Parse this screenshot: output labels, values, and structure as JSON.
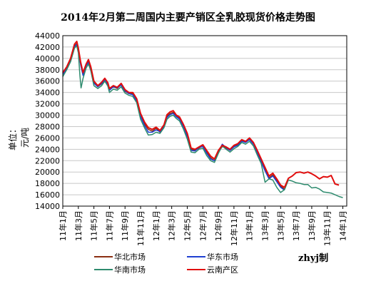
{
  "chart_data": {
    "type": "line",
    "title": "2014年2月第二周国内主要产销区全乳胶现货价格走势图",
    "ylabel": "单位：元/吨",
    "xlabel": "",
    "ylim": [
      14000,
      44000
    ],
    "yticks": [
      14000,
      16000,
      18000,
      20000,
      22000,
      24000,
      26000,
      28000,
      30000,
      32000,
      34000,
      36000,
      38000,
      40000,
      42000,
      44000
    ],
    "xtick_labels": [
      "11年1月",
      "11年3月",
      "11年5月",
      "11年7月",
      "11年9月",
      "11年11月",
      "12年1月",
      "12年3月",
      "12年5月",
      "12年7月",
      "12年9月",
      "12年11月",
      "13年1月",
      "13年3月",
      "13年5月",
      "13年7月",
      "13年9月",
      "13年11月",
      "14年1月"
    ],
    "grid": true,
    "legend_position": "bottom",
    "series": [
      {
        "name": "华北市场",
        "color": "#8B2F12",
        "points": [
          [
            0,
            37300
          ],
          [
            0.5,
            38200
          ],
          [
            1,
            39800
          ],
          [
            1.5,
            42200
          ],
          [
            1.8,
            42600
          ],
          [
            2,
            41500
          ],
          [
            2.3,
            39000
          ],
          [
            2.6,
            37200
          ],
          [
            3,
            38800
          ],
          [
            3.3,
            39500
          ],
          [
            3.6,
            38200
          ],
          [
            4,
            35800
          ],
          [
            4.5,
            35000
          ],
          [
            5,
            35500
          ],
          [
            5.4,
            36200
          ],
          [
            5.8,
            35500
          ],
          [
            6,
            34500
          ],
          [
            6.5,
            35000
          ],
          [
            7,
            34700
          ],
          [
            7.5,
            35400
          ],
          [
            8,
            34200
          ],
          [
            8.5,
            33800
          ],
          [
            9,
            33800
          ],
          [
            9.5,
            32700
          ],
          [
            10,
            30000
          ],
          [
            10.5,
            28500
          ],
          [
            11,
            27500
          ],
          [
            11.5,
            27200
          ],
          [
            12,
            27700
          ],
          [
            12.5,
            27000
          ],
          [
            13,
            28000
          ],
          [
            13.4,
            29800
          ],
          [
            13.8,
            30300
          ],
          [
            14.2,
            30500
          ],
          [
            14.6,
            29800
          ],
          [
            15,
            29500
          ],
          [
            15.5,
            28200
          ],
          [
            16,
            26500
          ],
          [
            16.5,
            24000
          ],
          [
            17,
            23800
          ],
          [
            17.5,
            24200
          ],
          [
            18,
            24600
          ],
          [
            18.5,
            23500
          ],
          [
            19,
            22500
          ],
          [
            19.5,
            22000
          ],
          [
            20,
            23500
          ],
          [
            20.5,
            24500
          ],
          [
            21,
            24200
          ],
          [
            21.5,
            23800
          ],
          [
            22,
            24500
          ],
          [
            22.5,
            24800
          ],
          [
            23,
            25500
          ],
          [
            23.5,
            25200
          ],
          [
            24,
            25800
          ],
          [
            24.5,
            25000
          ],
          [
            25,
            23500
          ],
          [
            25.5,
            22000
          ],
          [
            26,
            20500
          ],
          [
            26.5,
            19000
          ],
          [
            27,
            19500
          ],
          [
            27.5,
            18500
          ],
          [
            28,
            17500
          ],
          [
            28.5,
            17000
          ]
        ]
      },
      {
        "name": "华东市场",
        "color": "#1F3FD1",
        "points": [
          [
            0,
            37200
          ],
          [
            0.5,
            38200
          ],
          [
            1,
            39600
          ],
          [
            1.5,
            42000
          ],
          [
            1.8,
            42500
          ],
          [
            2,
            41300
          ],
          [
            2.3,
            38800
          ],
          [
            2.6,
            37000
          ],
          [
            3,
            38700
          ],
          [
            3.3,
            39300
          ],
          [
            3.6,
            38000
          ],
          [
            4,
            35600
          ],
          [
            4.5,
            35000
          ],
          [
            5,
            35600
          ],
          [
            5.4,
            36300
          ],
          [
            5.8,
            35400
          ],
          [
            6,
            34400
          ],
          [
            6.5,
            35000
          ],
          [
            7,
            34800
          ],
          [
            7.5,
            35300
          ],
          [
            8,
            34300
          ],
          [
            8.5,
            33800
          ],
          [
            9,
            33600
          ],
          [
            9.5,
            32500
          ],
          [
            10,
            29800
          ],
          [
            10.5,
            28200
          ],
          [
            11,
            27000
          ],
          [
            11.5,
            27000
          ],
          [
            12,
            27400
          ],
          [
            12.5,
            27100
          ],
          [
            13,
            28100
          ],
          [
            13.4,
            29600
          ],
          [
            13.8,
            30100
          ],
          [
            14.2,
            30300
          ],
          [
            14.6,
            29700
          ],
          [
            15,
            29300
          ],
          [
            15.5,
            28000
          ],
          [
            16,
            26200
          ],
          [
            16.5,
            23800
          ],
          [
            17,
            23700
          ],
          [
            17.5,
            24300
          ],
          [
            18,
            24500
          ],
          [
            18.5,
            23300
          ],
          [
            19,
            22300
          ],
          [
            19.5,
            22000
          ],
          [
            20,
            23600
          ],
          [
            20.5,
            24900
          ],
          [
            21,
            24300
          ],
          [
            21.5,
            23800
          ],
          [
            22,
            24400
          ],
          [
            22.5,
            24700
          ],
          [
            23,
            25400
          ],
          [
            23.5,
            25200
          ],
          [
            24,
            25700
          ],
          [
            24.5,
            24900
          ],
          [
            25,
            23300
          ],
          [
            25.5,
            21800
          ],
          [
            26,
            20200
          ],
          [
            26.5,
            18800
          ],
          [
            27,
            19300
          ],
          [
            27.5,
            18300
          ],
          [
            28,
            17300
          ],
          [
            28.5,
            16800
          ]
        ]
      },
      {
        "name": "华南市场",
        "color": "#2E8B6E",
        "points": [
          [
            0,
            36800
          ],
          [
            0.5,
            38000
          ],
          [
            1,
            39400
          ],
          [
            1.5,
            41800
          ],
          [
            1.8,
            42200
          ],
          [
            2,
            41000
          ],
          [
            2.2,
            37000
          ],
          [
            2.35,
            34800
          ],
          [
            2.6,
            36500
          ],
          [
            3,
            38300
          ],
          [
            3.3,
            39000
          ],
          [
            3.6,
            37800
          ],
          [
            4,
            35200
          ],
          [
            4.5,
            34700
          ],
          [
            5,
            35200
          ],
          [
            5.4,
            36000
          ],
          [
            5.8,
            35100
          ],
          [
            6,
            34000
          ],
          [
            6.5,
            34600
          ],
          [
            7,
            34400
          ],
          [
            7.5,
            35000
          ],
          [
            8,
            33900
          ],
          [
            8.5,
            33500
          ],
          [
            9,
            33300
          ],
          [
            9.5,
            32200
          ],
          [
            10,
            29300
          ],
          [
            10.5,
            27800
          ],
          [
            11,
            26500
          ],
          [
            11.5,
            26600
          ],
          [
            12,
            27000
          ],
          [
            12.5,
            26800
          ],
          [
            13,
            27800
          ],
          [
            13.4,
            29300
          ],
          [
            13.8,
            29800
          ],
          [
            14.2,
            30000
          ],
          [
            14.6,
            29400
          ],
          [
            15,
            29000
          ],
          [
            15.5,
            27600
          ],
          [
            16,
            25800
          ],
          [
            16.5,
            23500
          ],
          [
            17,
            23400
          ],
          [
            17.5,
            24000
          ],
          [
            18,
            24200
          ],
          [
            18.5,
            22900
          ],
          [
            19,
            22000
          ],
          [
            19.5,
            21700
          ],
          [
            20,
            23300
          ],
          [
            20.5,
            24600
          ],
          [
            21,
            24000
          ],
          [
            21.5,
            23500
          ],
          [
            22,
            24100
          ],
          [
            22.5,
            24500
          ],
          [
            23,
            25200
          ],
          [
            23.5,
            24900
          ],
          [
            24,
            25400
          ],
          [
            24.5,
            24600
          ],
          [
            25,
            23000
          ],
          [
            25.5,
            21500
          ],
          [
            26,
            18200
          ],
          [
            26.5,
            18800
          ],
          [
            27,
            18600
          ],
          [
            27.5,
            17300
          ],
          [
            28,
            16400
          ],
          [
            28.5,
            16900
          ],
          [
            29,
            18600
          ],
          [
            29.5,
            18400
          ],
          [
            30,
            18100
          ],
          [
            30.5,
            18000
          ],
          [
            31,
            17800
          ],
          [
            31.5,
            17800
          ],
          [
            32,
            17200
          ],
          [
            32.5,
            17300
          ],
          [
            33,
            17000
          ],
          [
            33.5,
            16500
          ],
          [
            34,
            16400
          ],
          [
            34.5,
            16300
          ],
          [
            35,
            16000
          ],
          [
            35.5,
            15700
          ],
          [
            36,
            15500
          ]
        ]
      },
      {
        "name": "云南产区",
        "color": "#E10E0E",
        "points": [
          [
            0,
            37500
          ],
          [
            0.5,
            38500
          ],
          [
            1,
            40000
          ],
          [
            1.5,
            42500
          ],
          [
            1.8,
            43000
          ],
          [
            2,
            41800
          ],
          [
            2.3,
            39300
          ],
          [
            2.6,
            37500
          ],
          [
            3,
            39000
          ],
          [
            3.3,
            39800
          ],
          [
            3.6,
            38500
          ],
          [
            4,
            36000
          ],
          [
            4.5,
            35200
          ],
          [
            5,
            35800
          ],
          [
            5.4,
            36500
          ],
          [
            5.8,
            35700
          ],
          [
            6,
            34700
          ],
          [
            6.5,
            35200
          ],
          [
            7,
            34900
          ],
          [
            7.5,
            35600
          ],
          [
            8,
            34500
          ],
          [
            8.5,
            34000
          ],
          [
            9,
            34000
          ],
          [
            9.5,
            32900
          ],
          [
            10,
            30300
          ],
          [
            10.5,
            28800
          ],
          [
            11,
            27800
          ],
          [
            11.5,
            27500
          ],
          [
            12,
            27900
          ],
          [
            12.5,
            27300
          ],
          [
            13,
            28300
          ],
          [
            13.4,
            30100
          ],
          [
            13.8,
            30600
          ],
          [
            14.2,
            30800
          ],
          [
            14.6,
            30000
          ],
          [
            15,
            29700
          ],
          [
            15.5,
            28400
          ],
          [
            16,
            26800
          ],
          [
            16.5,
            24200
          ],
          [
            17,
            24000
          ],
          [
            17.5,
            24400
          ],
          [
            18,
            24800
          ],
          [
            18.5,
            23800
          ],
          [
            19,
            22800
          ],
          [
            19.5,
            22300
          ],
          [
            20,
            23800
          ],
          [
            20.5,
            24700
          ],
          [
            21,
            24400
          ],
          [
            21.5,
            24000
          ],
          [
            22,
            24700
          ],
          [
            22.5,
            25000
          ],
          [
            23,
            25700
          ],
          [
            23.5,
            25400
          ],
          [
            24,
            26000
          ],
          [
            24.5,
            25200
          ],
          [
            25,
            23800
          ],
          [
            25.5,
            22300
          ],
          [
            26,
            20800
          ],
          [
            26.5,
            19300
          ],
          [
            27,
            19800
          ],
          [
            27.5,
            18800
          ],
          [
            28,
            17700
          ],
          [
            28.5,
            17300
          ],
          [
            29,
            18900
          ],
          [
            29.5,
            19300
          ],
          [
            30,
            19900
          ],
          [
            30.5,
            20000
          ],
          [
            31,
            19800
          ],
          [
            31.5,
            20000
          ],
          [
            32,
            19700
          ],
          [
            32.5,
            19300
          ],
          [
            33,
            18800
          ],
          [
            33.5,
            19200
          ],
          [
            34,
            19100
          ],
          [
            34.5,
            19400
          ],
          [
            35,
            17900
          ],
          [
            35.5,
            17700
          ]
        ]
      }
    ]
  },
  "credit": "zhyj制"
}
